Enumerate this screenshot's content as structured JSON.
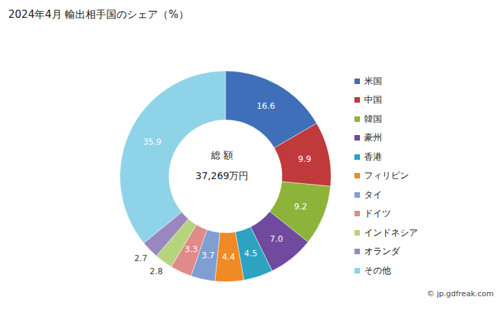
{
  "chart_data": {
    "type": "donut",
    "title": "2024年4月 輸出相手国のシェア（%）",
    "center_title": "総 額",
    "center_value": "37,269万円",
    "source": "© jp.gdfreak.com",
    "categories": [
      "米国",
      "中国",
      "韓国",
      "豪州",
      "香港",
      "フィリピン",
      "タイ",
      "ドイツ",
      "インドネシア",
      "オランダ",
      "その他"
    ],
    "values": [
      16.6,
      9.9,
      9.2,
      7.0,
      4.5,
      4.4,
      3.7,
      3.3,
      2.8,
      2.7,
      35.9
    ],
    "value_labels": [
      "16.6",
      "9.9",
      "9.2",
      "7.0",
      "4.5",
      "4.4",
      "3.7",
      "3.3",
      "2.8",
      "2.7",
      "35.9"
    ],
    "colors": [
      "#3f6fb8",
      "#c0393b",
      "#8db33a",
      "#6f4a9e",
      "#2ca3c0",
      "#f08a24",
      "#7f9fd3",
      "#e08a8a",
      "#b6d47e",
      "#9b87c0",
      "#8fd3e8"
    ],
    "data_labels": true,
    "legend": "right"
  }
}
